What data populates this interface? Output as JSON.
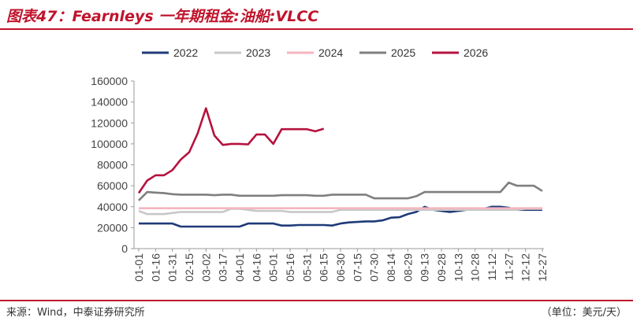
{
  "chart_data": {
    "type": "line",
    "title": "图表47：Fearnleys 一年期租金:油船:VLCC",
    "source": "来源：Wind，中泰证券研究所",
    "unit": "（单位：美元/天）",
    "categories": [
      "01-01",
      null,
      "01-16",
      null,
      "01-31",
      null,
      "02-15",
      null,
      "03-02",
      null,
      "03-17",
      null,
      "04-01",
      null,
      "04-16",
      null,
      "05-01",
      null,
      "05-16",
      null,
      "05-31",
      null,
      "06-15",
      null,
      "06-30",
      null,
      "07-15",
      null,
      "07-30",
      null,
      "08-14",
      null,
      "08-29",
      null,
      "09-13",
      null,
      "09-28",
      null,
      "10-13",
      null,
      "10-28",
      null,
      "11-12",
      null,
      "11-27",
      null,
      "12-12",
      null,
      "12-27"
    ],
    "ylim": [
      0,
      160000
    ],
    "yticks": [
      0,
      20000,
      40000,
      60000,
      80000,
      100000,
      120000,
      140000,
      160000
    ],
    "legend": "top",
    "series": [
      {
        "name": "2022",
        "color": "#1f3b78",
        "values": [
          24000,
          24000,
          24000,
          24000,
          24000,
          21000,
          21000,
          21000,
          21000,
          21000,
          21000,
          21000,
          21000,
          24000,
          24000,
          24000,
          24000,
          22000,
          22000,
          22500,
          22500,
          22500,
          22500,
          22000,
          24000,
          25000,
          25500,
          26000,
          26000,
          27000,
          29500,
          30000,
          33000,
          35000,
          40000,
          37000,
          36000,
          35000,
          36000,
          37000,
          37000,
          38000,
          40000,
          40000,
          39000,
          37000,
          37000,
          37000,
          37000
        ]
      },
      {
        "name": "2023",
        "color": "#c8c8c8",
        "values": [
          36000,
          33000,
          33000,
          33000,
          34000,
          35000,
          35000,
          35000,
          35000,
          35000,
          35000,
          38000,
          38000,
          37000,
          36000,
          36000,
          36000,
          36000,
          35000,
          35000,
          35000,
          35000,
          35000,
          35000,
          37000,
          37000,
          37000,
          37000,
          37000,
          37000,
          37000,
          37000,
          37000,
          37000,
          37000,
          37000,
          37000,
          37000,
          37000,
          37000,
          37000,
          37000,
          37000,
          37000,
          37000,
          37000,
          38000,
          38000,
          38000
        ]
      },
      {
        "name": "2024",
        "color": "#f4b6bf",
        "values": [
          38500,
          38500,
          38500,
          38500,
          38500,
          38500,
          38500,
          38500,
          38500,
          38500,
          38500,
          38500,
          38500,
          38500,
          38500,
          38500,
          38500,
          38500,
          38500,
          38500,
          38500,
          38500,
          38500,
          38500,
          38500,
          38500,
          38500,
          38500,
          38500,
          38500,
          38500,
          38500,
          38500,
          38500,
          38500,
          38500,
          38500,
          38500,
          38500,
          38500,
          38500,
          38500,
          38500,
          38500,
          38500,
          38500,
          38500,
          38500,
          38500
        ]
      },
      {
        "name": "2025",
        "color": "#7f7f7f",
        "values": [
          46000,
          54000,
          53500,
          53000,
          52000,
          51500,
          51500,
          51500,
          51500,
          51000,
          51500,
          51500,
          50500,
          50500,
          50500,
          50500,
          50500,
          51000,
          51000,
          51000,
          51000,
          50500,
          50500,
          51500,
          51500,
          51500,
          51500,
          51500,
          48000,
          48000,
          48000,
          48000,
          48000,
          50000,
          54000,
          54000,
          54000,
          54000,
          54000,
          54000,
          54000,
          54000,
          54000,
          54000,
          63000,
          60000,
          60000,
          60000,
          55000
        ]
      },
      {
        "name": "2026",
        "color": "#b5123e",
        "values": [
          53000,
          65000,
          70000,
          70000,
          75000,
          85000,
          92000,
          110000,
          134000,
          108000,
          99000,
          100000,
          100000,
          99500,
          109000,
          109000,
          100000,
          114000,
          114000,
          114000,
          114000,
          112000,
          114500,
          null,
          null,
          null,
          null,
          null,
          null,
          null,
          null,
          null,
          null,
          null,
          null,
          null,
          null,
          null,
          null,
          null,
          null,
          null,
          null,
          null,
          null,
          null,
          null,
          null,
          null
        ]
      }
    ]
  }
}
